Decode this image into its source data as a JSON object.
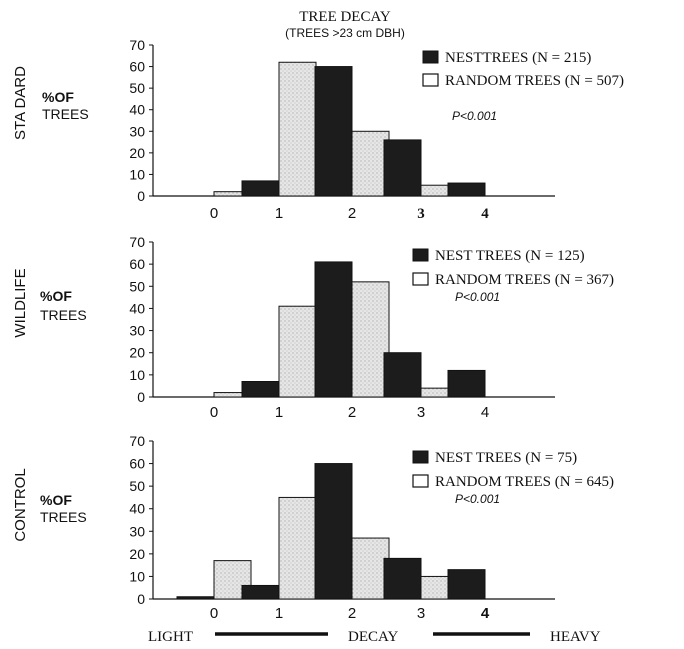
{
  "figure": {
    "title": "TREE DECAY",
    "subtitle": "(TREES >23 cm DBH)",
    "scale_left": "LIGHT",
    "scale_mid": "DECAY",
    "scale_right": "HEAVY"
  },
  "colors": {
    "nest": "#1c1c1c",
    "random": "#d9d9d9",
    "ink": "#111111"
  },
  "chart_data": [
    {
      "type": "bar",
      "panel": "STA DARD",
      "ylabel": [
        "%OF",
        "TREES"
      ],
      "categories": [
        "0",
        "1",
        "2",
        "3",
        "4"
      ],
      "yticks": [
        "0",
        "10",
        "20",
        "30",
        "40",
        "50",
        "60",
        "70"
      ],
      "ylim": [
        0,
        70
      ],
      "series": [
        {
          "name": "NESTTREES (N = 215)",
          "kind": "nest",
          "values": [
            0,
            7,
            60,
            26,
            6
          ]
        },
        {
          "name": "RANDOM TREES (N = 507)",
          "kind": "random",
          "values": [
            2,
            62,
            30,
            5,
            0
          ]
        }
      ],
      "annotation": "P<0.001"
    },
    {
      "type": "bar",
      "panel": "WILDLIFE",
      "ylabel": [
        "%OF",
        "TREES"
      ],
      "categories": [
        "0",
        "1",
        "2",
        "3",
        "4"
      ],
      "yticks": [
        "0",
        "10",
        "20",
        "30",
        "40",
        "50",
        "60",
        "70"
      ],
      "ylim": [
        0,
        70
      ],
      "series": [
        {
          "name": "NEST TREES (N = 125)",
          "kind": "nest",
          "values": [
            0,
            7,
            61,
            20,
            12
          ]
        },
        {
          "name": "RANDOM TREES (N = 367)",
          "kind": "random",
          "values": [
            2,
            41,
            52,
            4,
            0
          ]
        }
      ],
      "annotation": "P<0.001"
    },
    {
      "type": "bar",
      "panel": "CONTROL",
      "ylabel": [
        "%OF",
        "TREES"
      ],
      "categories": [
        "0",
        "1",
        "2",
        "3",
        "4"
      ],
      "yticks": [
        "0",
        "10",
        "20",
        "30",
        "40",
        "50",
        "60",
        "70"
      ],
      "ylim": [
        0,
        70
      ],
      "series": [
        {
          "name": "NEST TREES (N = 75)",
          "kind": "nest",
          "values": [
            1,
            6,
            60,
            18,
            13
          ]
        },
        {
          "name": "RANDOM TREES (N = 645)",
          "kind": "random",
          "values": [
            17,
            45,
            27,
            10,
            0
          ]
        }
      ],
      "annotation": "P<0.001"
    }
  ]
}
